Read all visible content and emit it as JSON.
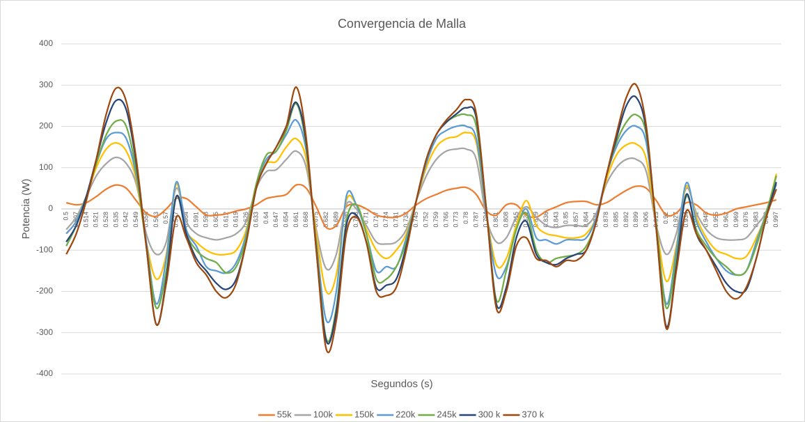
{
  "chart_data": {
    "type": "line",
    "title": "Convergencia de Malla",
    "x_label": "Segundos (s)",
    "y_label": "Potencia (W)",
    "categories": [
      "0.5",
      "0.507",
      "0.514",
      "0.521",
      "0.528",
      "0.535",
      "0.542",
      "0.549",
      "0.556",
      "0.563",
      "0.57",
      "0.577",
      "0.584",
      "0.591",
      "0.598",
      "0.605",
      "0.612",
      "0.619",
      "0.626",
      "0.633",
      "0.64",
      "0.647",
      "0.654",
      "0.661",
      "0.668",
      "0.675",
      "0.682",
      "0.689",
      "0.696",
      "0.703",
      "0.71",
      "0.717",
      "0.724",
      "0.731",
      "0.738",
      "0.745",
      "0.752",
      "0.759",
      "0.766",
      "0.773",
      "0.78",
      "0.787",
      "0.794",
      "0.801",
      "0.808",
      "0.815",
      "0.822",
      "0.829",
      "0.836",
      "0.843",
      "0.85",
      "0.857",
      "0.864",
      "0.871",
      "0.878",
      "0.885",
      "0.892",
      "0.899",
      "0.906",
      "0.913",
      "0.92",
      "0.927",
      "0.934",
      "0.941",
      "0.948",
      "0.955",
      "0.962",
      "0.969",
      "0.976",
      "0.983",
      "0.99",
      "0.997"
    ],
    "series": [
      {
        "name": "55k",
        "color": "#ed7d31",
        "values": [
          15,
          10,
          15,
          30,
          48,
          58,
          50,
          20,
          -10,
          -18,
          0,
          25,
          25,
          5,
          -15,
          -15,
          -12,
          -5,
          0,
          10,
          25,
          30,
          35,
          58,
          50,
          5,
          -45,
          -40,
          5,
          10,
          0,
          -15,
          -20,
          -20,
          -10,
          10,
          25,
          35,
          45,
          50,
          52,
          35,
          -5,
          -15,
          10,
          10,
          -15,
          -20,
          -5,
          5,
          15,
          18,
          18,
          10,
          15,
          30,
          45,
          55,
          50,
          20,
          -15,
          -10,
          15,
          10,
          -10,
          -15,
          -10,
          0,
          5,
          10,
          15,
          22
        ]
      },
      {
        "name": "100k",
        "color": "#a5a5a5",
        "values": [
          -50,
          -20,
          30,
          80,
          110,
          125,
          110,
          60,
          -60,
          -110,
          -80,
          50,
          -30,
          -60,
          -70,
          -75,
          -70,
          -60,
          -30,
          50,
          90,
          95,
          120,
          140,
          100,
          -50,
          -145,
          -110,
          10,
          0,
          -40,
          -80,
          -85,
          -80,
          -50,
          20,
          80,
          120,
          140,
          145,
          145,
          120,
          -20,
          -80,
          -70,
          -20,
          5,
          -20,
          -40,
          -45,
          -40,
          -40,
          -40,
          -10,
          60,
          100,
          120,
          120,
          90,
          -40,
          -110,
          -60,
          50,
          -10,
          -50,
          -70,
          -75,
          -75,
          -70,
          -40,
          -5,
          80
        ]
      },
      {
        "name": "150k",
        "color": "#ffc000",
        "values": [
          -60,
          -30,
          30,
          100,
          145,
          160,
          140,
          70,
          -80,
          -170,
          -110,
          60,
          -50,
          -80,
          -100,
          -110,
          -110,
          -100,
          -50,
          60,
          110,
          115,
          150,
          170,
          120,
          -60,
          -200,
          -160,
          20,
          10,
          -50,
          -100,
          -120,
          -100,
          -60,
          20,
          100,
          150,
          170,
          175,
          185,
          160,
          -10,
          -135,
          -120,
          -40,
          20,
          -40,
          -60,
          -65,
          -70,
          -70,
          -60,
          -20,
          70,
          130,
          155,
          157,
          120,
          -40,
          -175,
          -90,
          55,
          -20,
          -70,
          -100,
          -110,
          -120,
          -115,
          -70,
          -10,
          85
        ]
      },
      {
        "name": "220k",
        "color": "#5b9bd5",
        "values": [
          -60,
          -30,
          30,
          110,
          170,
          185,
          170,
          80,
          -80,
          -230,
          -120,
          65,
          -50,
          -90,
          -140,
          -150,
          -155,
          -130,
          -60,
          60,
          120,
          140,
          180,
          215,
          140,
          -80,
          -270,
          -200,
          30,
          10,
          -60,
          -150,
          -140,
          -140,
          -70,
          20,
          110,
          170,
          190,
          200,
          200,
          170,
          -10,
          -160,
          -140,
          -50,
          0,
          -70,
          -75,
          -85,
          -75,
          -75,
          -70,
          -20,
          80,
          150,
          190,
          200,
          160,
          -40,
          -230,
          -100,
          63,
          -30,
          -80,
          -120,
          -150,
          -160,
          -150,
          -80,
          -10,
          60
        ]
      },
      {
        "name": "245k",
        "color": "#70ad47",
        "values": [
          -90,
          -40,
          30,
          110,
          180,
          213,
          200,
          90,
          -90,
          -240,
          -150,
          30,
          -60,
          -100,
          -120,
          -130,
          -155,
          -140,
          -70,
          60,
          130,
          140,
          190,
          255,
          150,
          -90,
          -315,
          -240,
          -30,
          10,
          -60,
          -170,
          -170,
          -140,
          -80,
          20,
          120,
          180,
          210,
          225,
          228,
          200,
          0,
          -220,
          -150,
          -50,
          -10,
          -100,
          -130,
          -120,
          -115,
          -110,
          -90,
          -30,
          80,
          160,
          210,
          228,
          180,
          -40,
          -240,
          -120,
          30,
          -50,
          -90,
          -120,
          -140,
          -160,
          -150,
          -90,
          -10,
          80
        ]
      },
      {
        "name": "300 k",
        "color": "#264478",
        "values": [
          -80,
          -40,
          30,
          120,
          210,
          263,
          240,
          110,
          -90,
          -280,
          -170,
          30,
          -60,
          -120,
          -150,
          -180,
          -195,
          -170,
          -80,
          50,
          110,
          150,
          200,
          258,
          160,
          -100,
          -320,
          -250,
          -40,
          -15,
          -80,
          -190,
          -185,
          -170,
          -90,
          20,
          120,
          180,
          210,
          230,
          245,
          220,
          0,
          -230,
          -190,
          -70,
          -30,
          -110,
          -130,
          -135,
          -120,
          -110,
          -100,
          -30,
          80,
          170,
          250,
          270,
          190,
          -50,
          -285,
          -140,
          35,
          -60,
          -100,
          -140,
          -180,
          -200,
          -195,
          -120,
          -20,
          65
        ]
      },
      {
        "name": "370 k",
        "color": "#9e480e",
        "values": [
          -110,
          -60,
          20,
          120,
          230,
          293,
          260,
          120,
          -90,
          -280,
          -180,
          -20,
          -70,
          -130,
          -160,
          -200,
          -215,
          -180,
          -80,
          50,
          110,
          150,
          200,
          295,
          170,
          -100,
          -340,
          -270,
          -60,
          -20,
          -80,
          -200,
          -210,
          -190,
          -100,
          20,
          120,
          180,
          215,
          240,
          265,
          230,
          0,
          -240,
          -200,
          -90,
          -70,
          -120,
          -125,
          -140,
          -125,
          -125,
          -100,
          -30,
          80,
          180,
          270,
          300,
          200,
          -50,
          -290,
          -150,
          -5,
          -60,
          -100,
          -150,
          -200,
          -218,
          -190,
          -120,
          -20,
          48
        ]
      }
    ],
    "ylim": [
      -400,
      400
    ],
    "yticks": [
      400,
      300,
      200,
      100,
      0,
      -100,
      -200,
      -300,
      -400
    ],
    "grid": true,
    "legend": "bottom"
  }
}
